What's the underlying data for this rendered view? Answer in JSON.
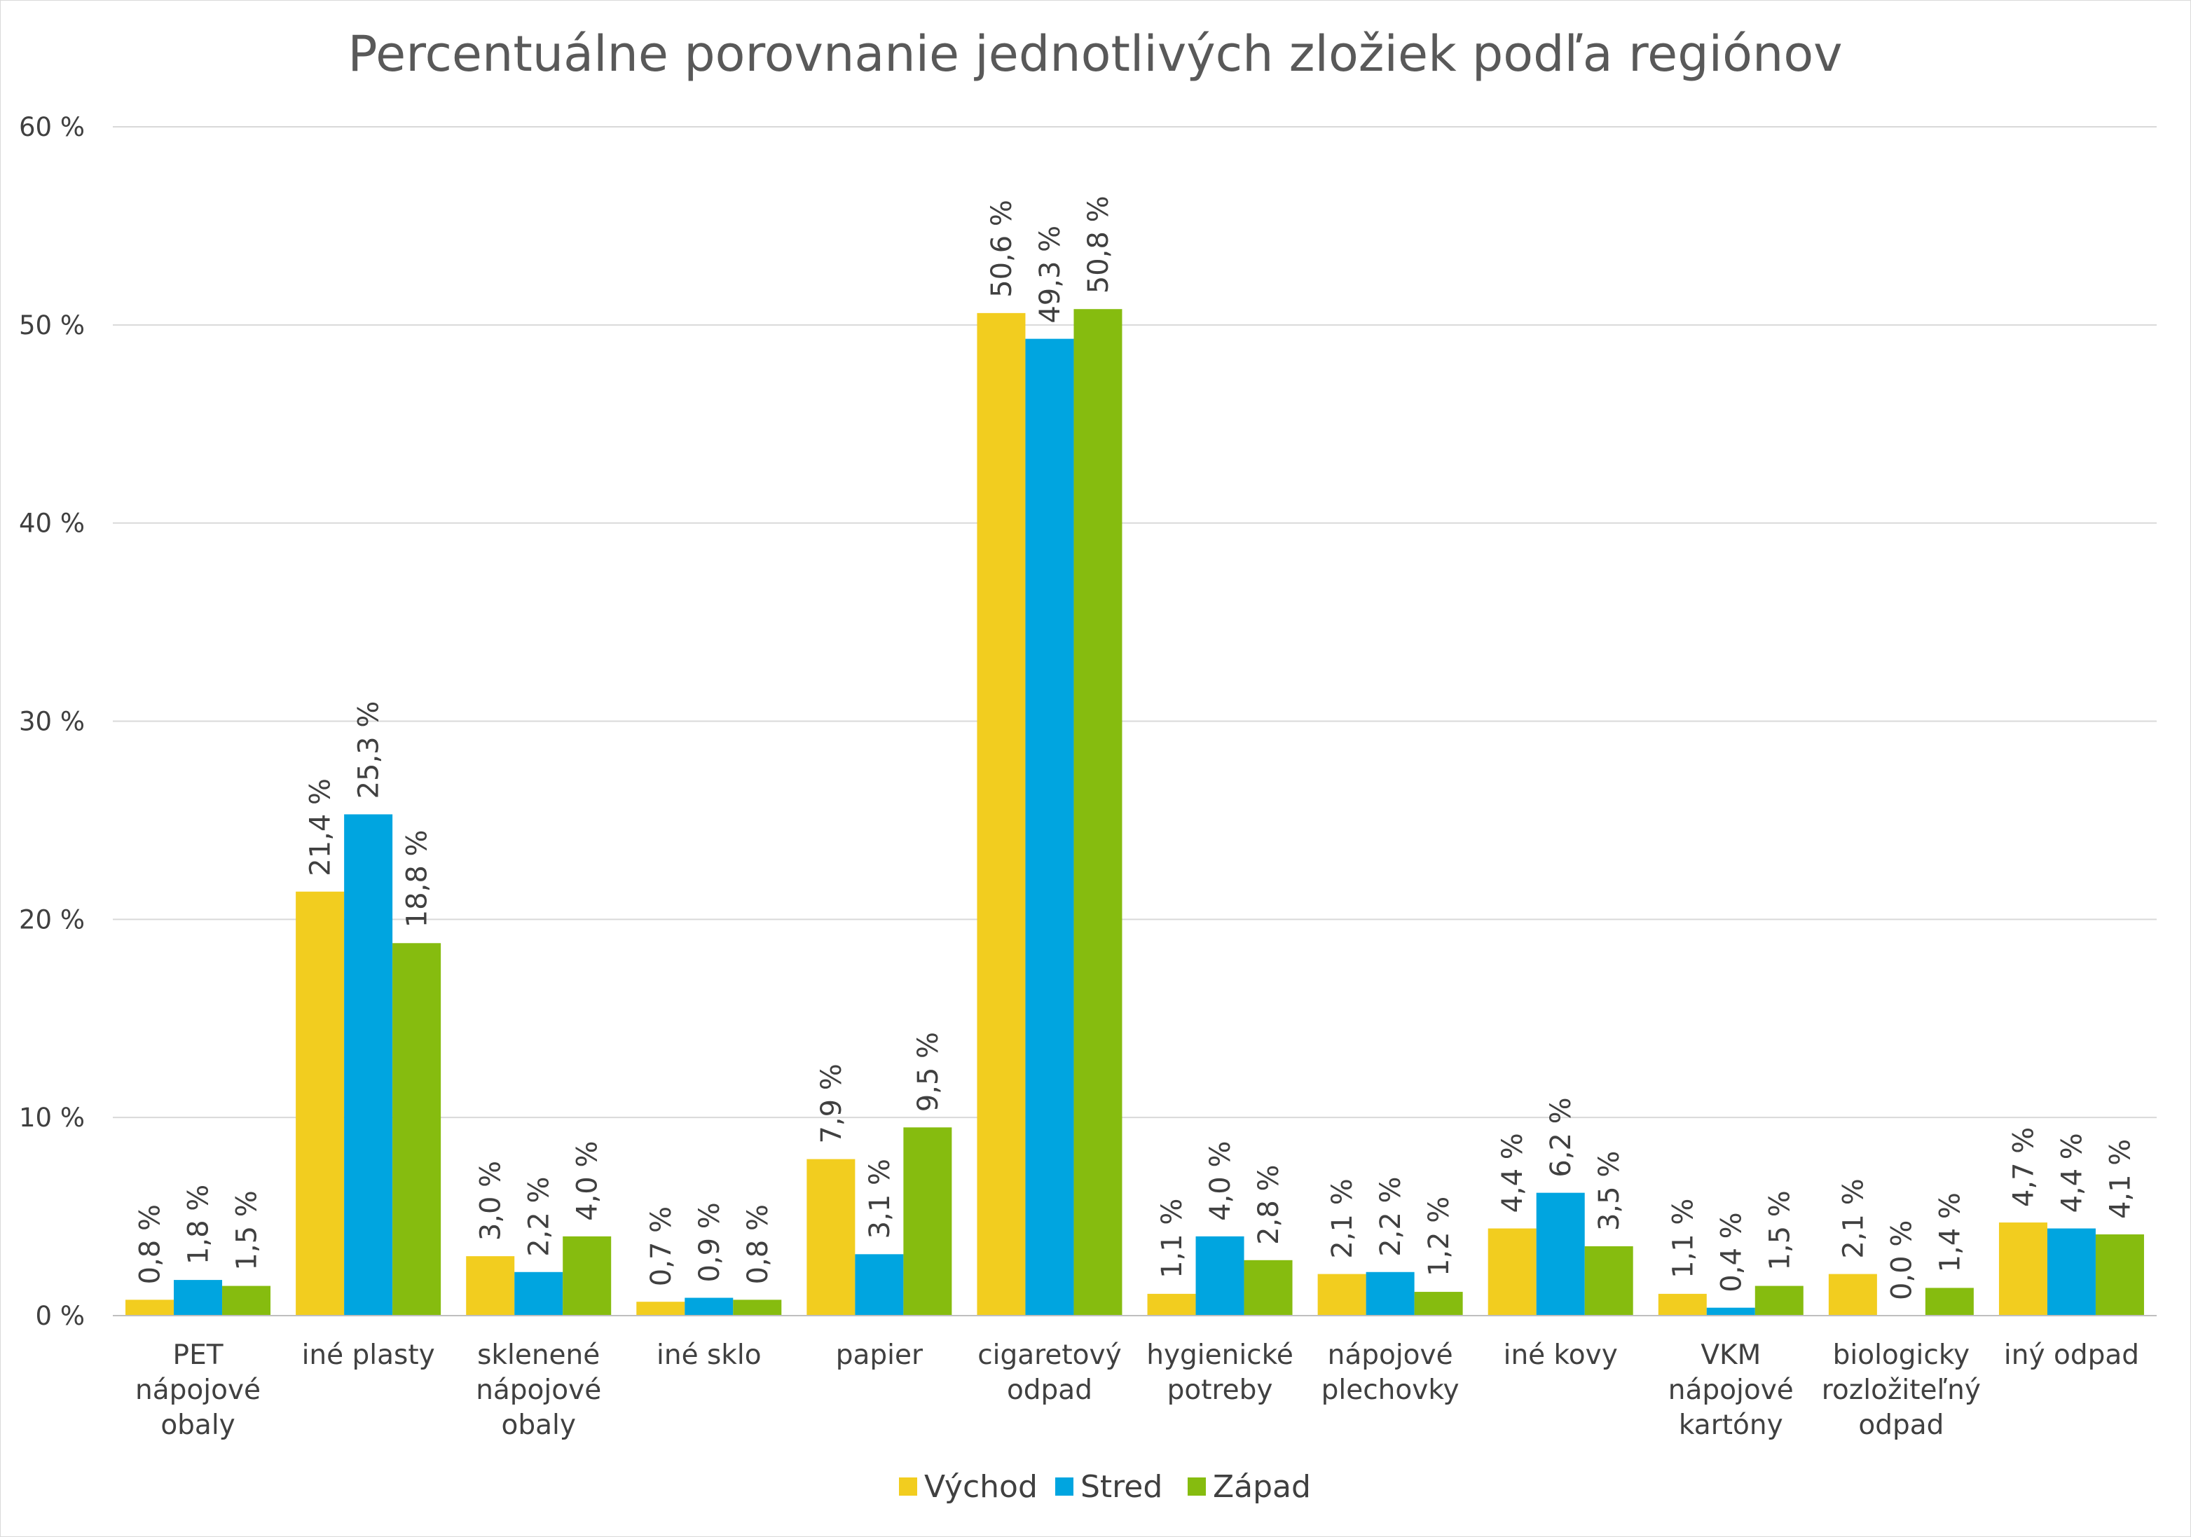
{
  "chart_data": {
    "type": "bar",
    "title": "Percentuálne porovnanie jednotlivých zložiek podľa regiónov",
    "xlabel": "",
    "ylabel": "",
    "ylim": [
      0,
      60
    ],
    "yticks": [
      0,
      10,
      20,
      30,
      40,
      50,
      60
    ],
    "ytick_labels": [
      "0 %",
      "10 %",
      "20 %",
      "30 %",
      "40 %",
      "50 %",
      "60 %"
    ],
    "grid": true,
    "legend_position": "bottom",
    "categories": [
      [
        "PET",
        "nápojové",
        "obaly"
      ],
      [
        "iné plasty"
      ],
      [
        "sklenené",
        "nápojové",
        "obaly"
      ],
      [
        "iné sklo"
      ],
      [
        "papier"
      ],
      [
        "cigaretový",
        "odpad"
      ],
      [
        "hygienické",
        "potreby"
      ],
      [
        "nápojové",
        "plechovky"
      ],
      [
        "iné kovy"
      ],
      [
        "VKM",
        "nápojové",
        "kartóny"
      ],
      [
        "biologicky",
        "rozložiteľný",
        "odpad"
      ],
      [
        "iný odpad"
      ]
    ],
    "series": [
      {
        "name": "Východ",
        "color": "#f2cd1f",
        "values": [
          0.8,
          21.4,
          3.0,
          0.7,
          7.9,
          50.6,
          1.1,
          2.1,
          4.4,
          1.1,
          2.1,
          4.7
        ],
        "labels": [
          "0,8 %",
          "21,4 %",
          "3,0 %",
          "0,7 %",
          "7,9 %",
          "50,6 %",
          "1,1 %",
          "2,1 %",
          "4,4 %",
          "1,1 %",
          "2,1 %",
          "4,7 %"
        ]
      },
      {
        "name": "Stred",
        "color": "#00a5e0",
        "values": [
          1.8,
          25.3,
          2.2,
          0.9,
          3.1,
          49.3,
          4.0,
          2.2,
          6.2,
          0.4,
          0.0,
          4.4
        ],
        "labels": [
          "1,8 %",
          "25,3 %",
          "2,2 %",
          "0,9 %",
          "3,1 %",
          "49,3 %",
          "4,0 %",
          "2,2 %",
          "6,2 %",
          "0,4 %",
          "0,0 %",
          "4,4 %"
        ]
      },
      {
        "name": "Západ",
        "color": "#86bc0f",
        "values": [
          1.5,
          18.8,
          4.0,
          0.8,
          9.5,
          50.8,
          2.8,
          1.2,
          3.5,
          1.5,
          1.4,
          4.1
        ],
        "labels": [
          "1,5 %",
          "18,8 %",
          "4,0 %",
          "0,8 %",
          "9,5 %",
          "50,8 %",
          "2,8 %",
          "1,2 %",
          "3,5 %",
          "1,5 %",
          "1,4 %",
          "4,1 %"
        ]
      }
    ],
    "gridline_color": "#d9d9d9",
    "axis_color": "#bfbfbf"
  }
}
